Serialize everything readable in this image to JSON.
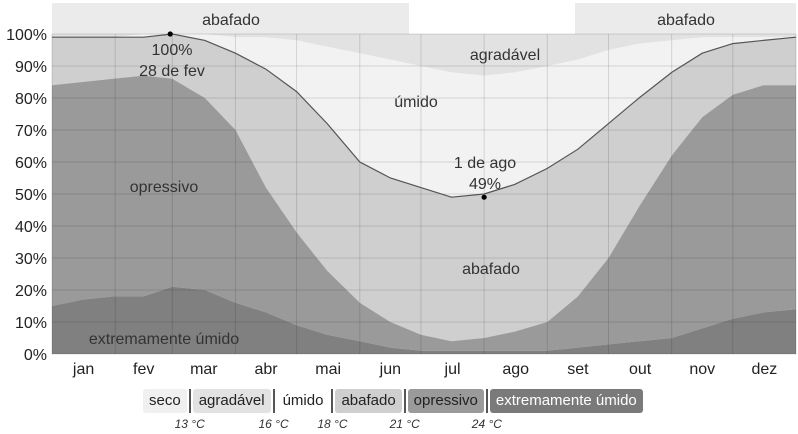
{
  "chart_data": {
    "type": "area",
    "title": "",
    "xlabel": "",
    "ylabel": "",
    "ylim": [
      0,
      100
    ],
    "y_ticks": [
      "0%",
      "10%",
      "20%",
      "30%",
      "40%",
      "50%",
      "60%",
      "70%",
      "80%",
      "90%",
      "100%"
    ],
    "months": [
      "jan",
      "fev",
      "mar",
      "abr",
      "mai",
      "jun",
      "jul",
      "ago",
      "set",
      "out",
      "nov",
      "dez"
    ],
    "x_days": [
      0,
      15,
      30,
      45,
      59,
      75,
      90,
      105,
      120,
      135,
      151,
      166,
      181,
      196,
      212,
      227,
      243,
      258,
      273,
      288,
      304,
      319,
      334,
      349,
      365
    ],
    "series": [
      {
        "name": "extremamente úmido",
        "values": [
          15,
          17,
          18,
          18,
          21,
          20,
          16,
          13,
          9,
          6,
          4,
          2,
          1,
          1,
          1,
          1,
          1,
          2,
          3,
          4,
          5,
          8,
          11,
          13,
          14
        ]
      },
      {
        "name": "opressivo",
        "values": [
          84,
          85,
          86,
          87,
          86,
          80,
          70,
          52,
          38,
          26,
          16,
          10,
          6,
          4,
          5,
          7,
          10,
          18,
          30,
          46,
          62,
          74,
          81,
          84,
          84
        ]
      },
      {
        "name": "abafado",
        "values": [
          99,
          99,
          99,
          99,
          100,
          98,
          94,
          89,
          82,
          72,
          60,
          55,
          52,
          49,
          50,
          53,
          58,
          64,
          72,
          80,
          88,
          94,
          97,
          98,
          99
        ]
      },
      {
        "name": "úmido",
        "values": [
          99,
          99,
          99,
          100,
          100,
          100,
          99,
          99,
          98,
          96,
          94,
          92,
          90,
          88,
          87,
          88,
          90,
          92,
          95,
          97,
          98,
          99,
          99,
          99,
          99
        ]
      }
    ],
    "annotations": {
      "max": {
        "label": "100%",
        "date": "28 de fev"
      },
      "min": {
        "label": "49%",
        "date": "1 de ago"
      }
    },
    "region_labels": {
      "abafado_top_left": "abafado",
      "abafado_top_right": "abafado",
      "agradavel": "agradável",
      "umido": "úmido",
      "abafado": "abafado",
      "opressivo": "opressivo",
      "extremamente_umido": "extremamente úmido"
    },
    "colors": {
      "seco": "#f4f4f4",
      "agradavel": "#e2e2e2",
      "umido": "#f2f2f2",
      "abafado": "#cfcfcf",
      "opressivo": "#9a9a9a",
      "extremamente_umido": "#808080",
      "band": "#ebebeb"
    }
  },
  "legend": {
    "items": [
      {
        "label": "seco",
        "bg": "#f0f0f0",
        "fg": "#222222"
      },
      {
        "label": "agradável",
        "bg": "#e2e2e2",
        "fg": "#222222"
      },
      {
        "label": "úmido",
        "bg": "#ffffff",
        "fg": "#222222"
      },
      {
        "label": "abafado",
        "bg": "#cfcfcf",
        "fg": "#222222"
      },
      {
        "label": "opressivo",
        "bg": "#9a9a9a",
        "fg": "#222222"
      },
      {
        "label": "extremamente úmido",
        "bg": "#7a7a7a",
        "fg": "#ffffff"
      }
    ],
    "temps": [
      "13 °C",
      "16 °C",
      "18 °C",
      "21 °C",
      "24 °C"
    ]
  }
}
